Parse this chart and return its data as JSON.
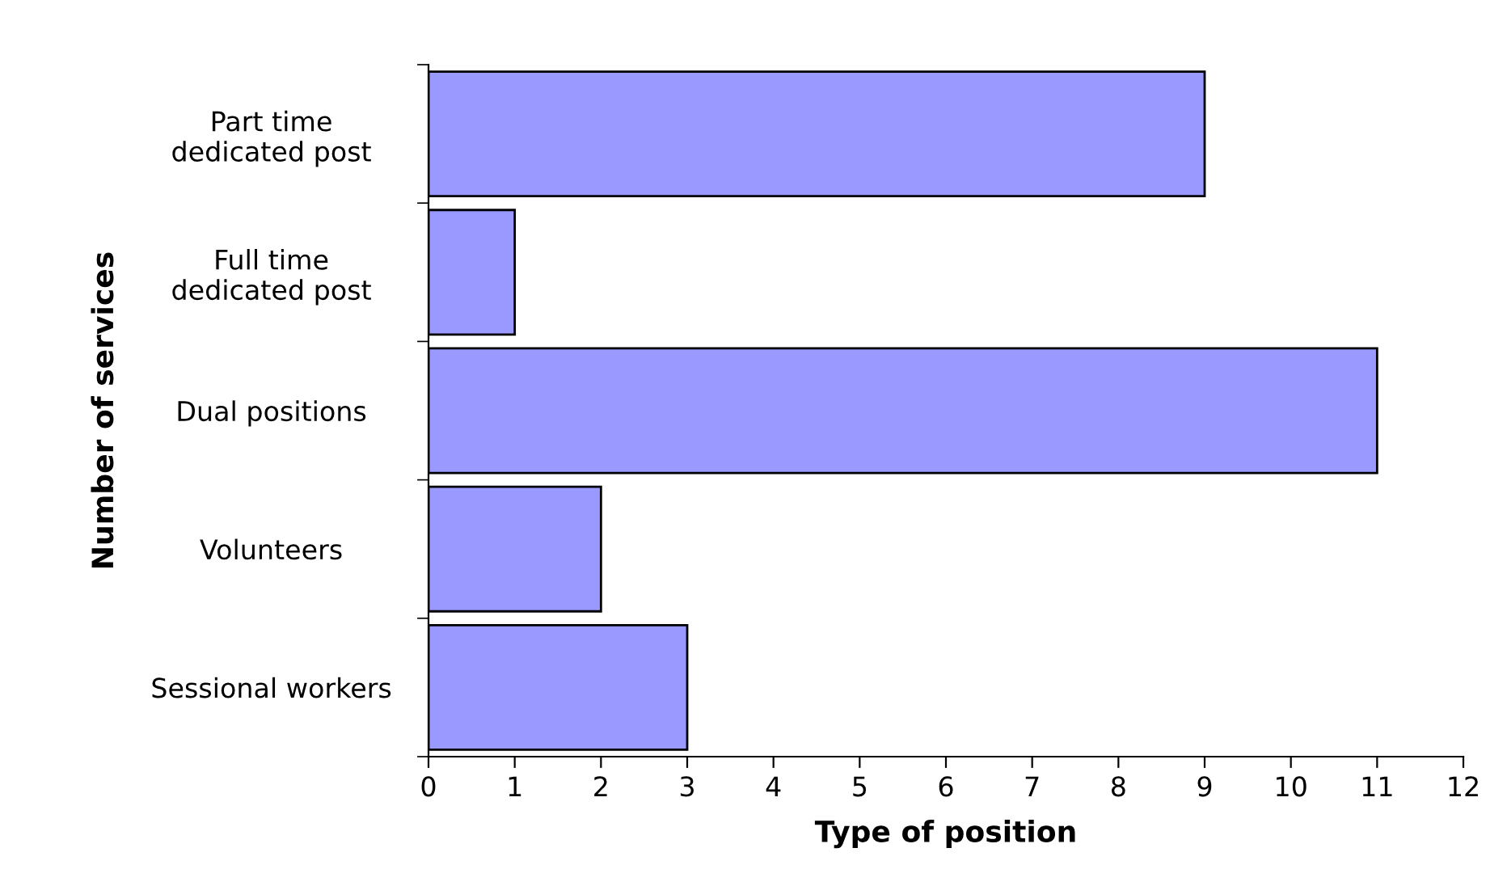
{
  "chart_data": {
    "type": "bar",
    "orientation": "horizontal",
    "xlabel": "Type of position",
    "ylabel": "Number of services",
    "categories": [
      "Part time\ndedicated post",
      "Full time\ndedicated post",
      "Dual positions",
      "Volunteers",
      "Sessional workers"
    ],
    "values": [
      9,
      1,
      11,
      2,
      3
    ],
    "color": "#9999ff",
    "xlim": [
      0,
      12
    ],
    "xticks": [
      0,
      1,
      2,
      3,
      4,
      5,
      6,
      7,
      8,
      9,
      10,
      11,
      12
    ],
    "grid": false,
    "legend": false
  }
}
